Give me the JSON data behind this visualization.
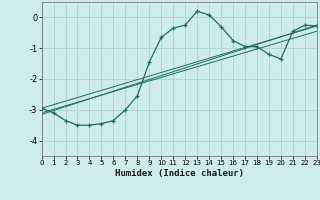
{
  "title": "",
  "xlabel": "Humidex (Indice chaleur)",
  "ylabel": "",
  "background_color": "#cdecea",
  "grid_color": "#aed4d0",
  "line_color": "#1e6e62",
  "xlim": [
    0,
    23
  ],
  "ylim": [
    -4.5,
    0.5
  ],
  "yticks": [
    0,
    -1,
    -2,
    -3,
    -4
  ],
  "xticks": [
    0,
    1,
    2,
    3,
    4,
    5,
    6,
    7,
    8,
    9,
    10,
    11,
    12,
    13,
    14,
    15,
    16,
    17,
    18,
    19,
    20,
    21,
    22,
    23
  ],
  "series": [
    [
      0,
      -2.95
    ],
    [
      1,
      -3.1
    ],
    [
      2,
      -3.35
    ],
    [
      3,
      -3.5
    ],
    [
      4,
      -3.5
    ],
    [
      5,
      -3.45
    ],
    [
      6,
      -3.35
    ],
    [
      7,
      -3.0
    ],
    [
      8,
      -2.55
    ],
    [
      9,
      -1.45
    ],
    [
      10,
      -0.65
    ],
    [
      11,
      -0.35
    ],
    [
      12,
      -0.25
    ],
    [
      13,
      0.2
    ],
    [
      14,
      0.08
    ],
    [
      15,
      -0.3
    ],
    [
      16,
      -0.75
    ],
    [
      17,
      -0.95
    ],
    [
      18,
      -0.95
    ],
    [
      19,
      -1.2
    ],
    [
      20,
      -1.35
    ],
    [
      21,
      -0.45
    ],
    [
      22,
      -0.25
    ],
    [
      23,
      -0.28
    ]
  ],
  "line2": [
    [
      0,
      -2.95
    ],
    [
      23,
      -0.28
    ]
  ],
  "line3": [
    [
      0,
      -3.1
    ],
    [
      23,
      -0.45
    ]
  ],
  "line4": [
    [
      0,
      -3.15
    ],
    [
      23,
      -0.25
    ]
  ]
}
